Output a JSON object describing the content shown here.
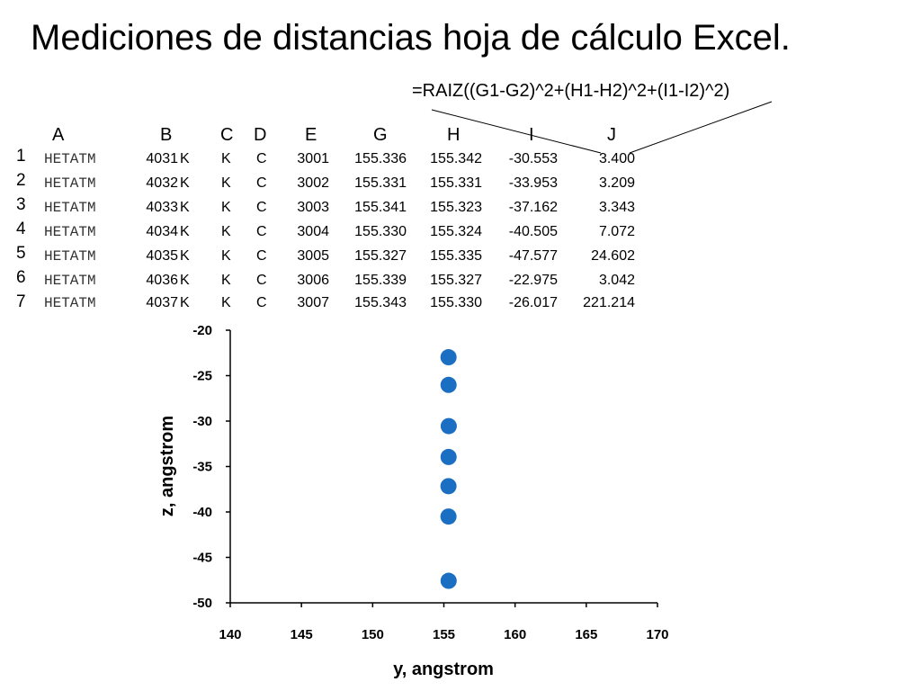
{
  "title": "Mediciones de distancias hoja de cálculo Excel.",
  "formula": "=RAIZ((G1-G2)^2+(H1-H2)^2+(I1-I2)^2)",
  "columns": [
    "A",
    "B",
    "C",
    "D",
    "E",
    "G",
    "H",
    "I",
    "J"
  ],
  "rows": [
    {
      "n": "1",
      "a": "HETATM",
      "b": "4031",
      "c": "K",
      "d": "C",
      "e": "3001",
      "g": "155.336",
      "h": "155.342",
      "i": "-30.553",
      "j": "3.400"
    },
    {
      "n": "2",
      "a": "HETATM",
      "b": "4032",
      "c": "K",
      "d": "C",
      "e": "3002",
      "g": "155.331",
      "h": "155.331",
      "i": "-33.953",
      "j": "3.209"
    },
    {
      "n": "3",
      "a": "HETATM",
      "b": "4033",
      "c": "K",
      "d": "C",
      "e": "3003",
      "g": "155.341",
      "h": "155.323",
      "i": "-37.162",
      "j": "3.343"
    },
    {
      "n": "4",
      "a": "HETATM",
      "b": "4034",
      "c": "K",
      "d": "C",
      "e": "3004",
      "g": "155.330",
      "h": "155.324",
      "i": "-40.505",
      "j": "7.072"
    },
    {
      "n": "5",
      "a": "HETATM",
      "b": "4035",
      "c": "K",
      "d": "C",
      "e": "3005",
      "g": "155.327",
      "h": "155.335",
      "i": "-47.577",
      "j": "24.602"
    },
    {
      "n": "6",
      "a": "HETATM",
      "b": "4036",
      "c": "K",
      "d": "C",
      "e": "3006",
      "g": "155.339",
      "h": "155.327",
      "i": "-22.975",
      "j": "3.042"
    },
    {
      "n": "7",
      "a": "HETATM",
      "b": "4037",
      "c": "K",
      "d": "C",
      "e": "3007",
      "g": "155.343",
      "h": "155.330",
      "i": "-26.017",
      "j": "221.214"
    }
  ],
  "chart_data": {
    "type": "scatter",
    "title": "",
    "xlabel": "y, angstrom",
    "ylabel": "z, angstrom",
    "xlim": [
      140,
      170
    ],
    "ylim": [
      -50,
      -20
    ],
    "xticks": [
      140,
      145,
      150,
      155,
      160,
      165,
      170
    ],
    "yticks": [
      -20,
      -25,
      -30,
      -35,
      -40,
      -45,
      -50
    ],
    "grid": false,
    "marker_color": "#1b6fc2",
    "points": [
      {
        "x": 155.342,
        "y": -30.553
      },
      {
        "x": 155.331,
        "y": -33.953
      },
      {
        "x": 155.323,
        "y": -37.162
      },
      {
        "x": 155.324,
        "y": -40.505
      },
      {
        "x": 155.335,
        "y": -47.577
      },
      {
        "x": 155.327,
        "y": -22.975
      },
      {
        "x": 155.33,
        "y": -26.017
      }
    ]
  }
}
